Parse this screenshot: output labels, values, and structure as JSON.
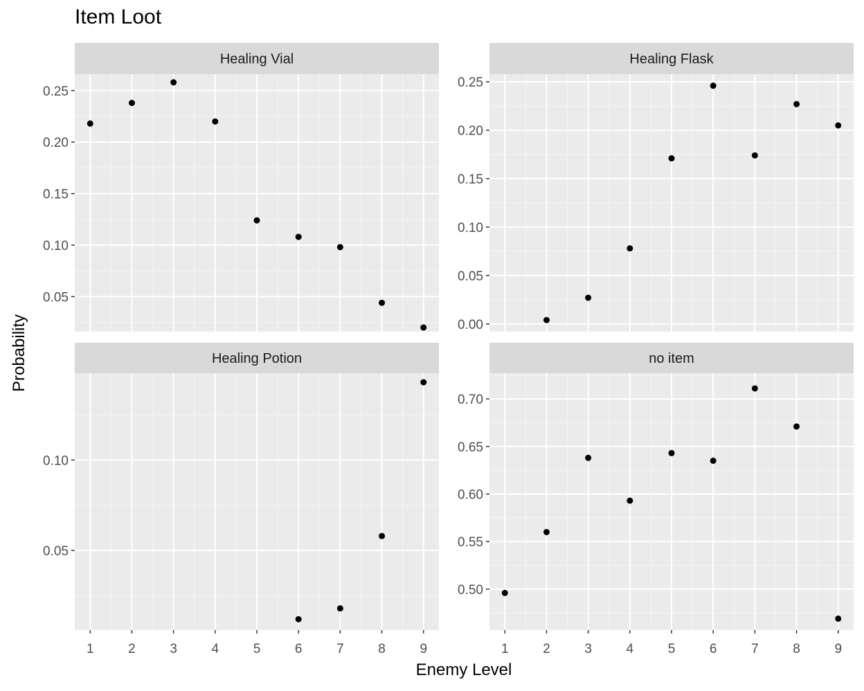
{
  "title": "Item Loot",
  "chart_data": {
    "type": "scatter",
    "title": "Item Loot",
    "xlabel": "Enemy Level",
    "ylabel": "Probability",
    "x": [
      1,
      2,
      3,
      4,
      5,
      6,
      7,
      8,
      9
    ],
    "grid": true,
    "facets": [
      {
        "name": "Healing Vial",
        "x": [
          1,
          2,
          3,
          4,
          5,
          6,
          7,
          8,
          9
        ],
        "y": [
          0.218,
          0.238,
          0.258,
          0.22,
          0.124,
          0.108,
          0.098,
          0.044,
          0.02
        ],
        "ylim": [
          0.016,
          0.266
        ],
        "yticks": [
          0.05,
          0.1,
          0.15,
          0.2,
          0.25
        ],
        "yticklabels": [
          "0.05",
          "0.10",
          "0.15",
          "0.20",
          "0.25"
        ]
      },
      {
        "name": "Healing Flask",
        "x": [
          1,
          2,
          3,
          4,
          5,
          6,
          7,
          8,
          9
        ],
        "y": [
          null,
          0.004,
          0.027,
          0.078,
          0.171,
          0.246,
          0.174,
          0.227,
          0.205
        ],
        "ylim": [
          -0.008,
          0.258
        ],
        "yticks": [
          0.0,
          0.05,
          0.1,
          0.15,
          0.2,
          0.25
        ],
        "yticklabels": [
          "0.00",
          "0.05",
          "0.10",
          "0.15",
          "0.20",
          "0.25"
        ]
      },
      {
        "name": "Healing Potion",
        "x": [
          1,
          2,
          3,
          4,
          5,
          6,
          7,
          8,
          9
        ],
        "y": [
          null,
          null,
          null,
          null,
          null,
          0.012,
          0.018,
          0.058,
          0.143
        ],
        "ylim": [
          0.006,
          0.148
        ],
        "yticks": [
          0.05,
          0.1
        ],
        "yticklabels": [
          "0.05",
          "0.10"
        ]
      },
      {
        "name": "no item",
        "x": [
          1,
          2,
          3,
          4,
          5,
          6,
          7,
          8,
          9
        ],
        "y": [
          0.496,
          0.56,
          0.638,
          0.593,
          0.643,
          0.635,
          0.711,
          0.671,
          0.469
        ],
        "ylim": [
          0.457,
          0.727
        ],
        "yticks": [
          0.5,
          0.55,
          0.6,
          0.65,
          0.7
        ],
        "yticklabels": [
          "0.50",
          "0.55",
          "0.60",
          "0.65",
          "0.70"
        ]
      }
    ],
    "xticklabels": [
      "1",
      "2",
      "3",
      "4",
      "5",
      "6",
      "7",
      "8",
      "9"
    ],
    "colors": {
      "panel_bg": "#EBEBEB",
      "strip_bg": "#D9D9D9",
      "grid_major": "#FFFFFF",
      "grid_minor": "#F5F5F5",
      "point": "#000000",
      "tick_label": "#4D4D4D"
    }
  }
}
